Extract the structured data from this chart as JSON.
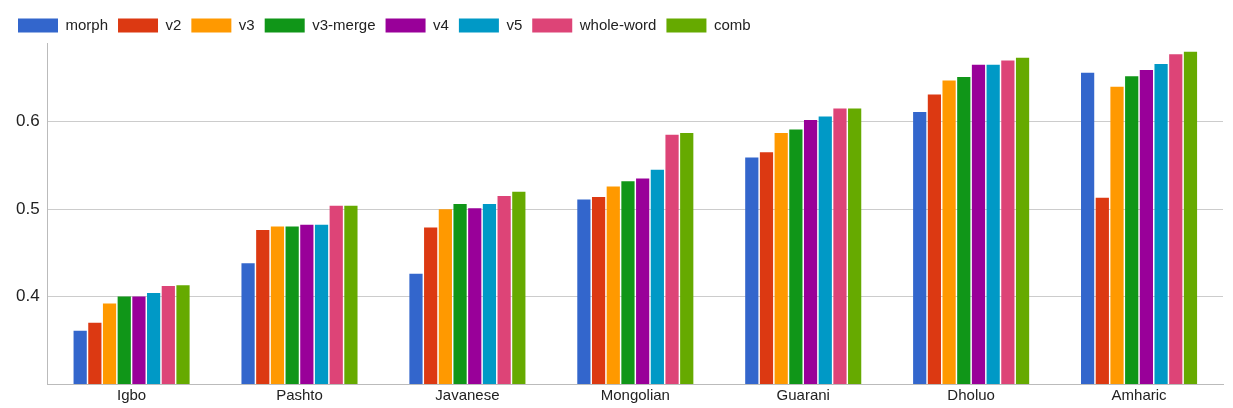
{
  "chart_data": {
    "type": "bar",
    "categories": [
      "Igbo",
      "Pashto",
      "Javanese",
      "Mongolian",
      "Guarani",
      "Dholuo",
      "Amharic"
    ],
    "series": [
      {
        "name": "morph",
        "color": "#3366cc",
        "values": [
          0.361,
          0.438,
          0.426,
          0.511,
          0.559,
          0.611,
          0.656
        ]
      },
      {
        "name": "v2",
        "color": "#dc3912",
        "values": [
          0.37,
          0.476,
          0.479,
          0.514,
          0.565,
          0.631,
          0.513
        ]
      },
      {
        "name": "v3",
        "color": "#ff9900",
        "values": [
          0.392,
          0.48,
          0.5,
          0.526,
          0.587,
          0.647,
          0.64
        ]
      },
      {
        "name": "v3-merge",
        "color": "#109618",
        "values": [
          0.4,
          0.48,
          0.506,
          0.532,
          0.591,
          0.651,
          0.652
        ]
      },
      {
        "name": "v4",
        "color": "#990099",
        "values": [
          0.4,
          0.482,
          0.501,
          0.535,
          0.602,
          0.665,
          0.659
        ]
      },
      {
        "name": "v5",
        "color": "#0099c6",
        "values": [
          0.404,
          0.482,
          0.506,
          0.545,
          0.606,
          0.665,
          0.666
        ]
      },
      {
        "name": "whole-word",
        "color": "#dd4477",
        "values": [
          0.412,
          0.504,
          0.515,
          0.585,
          0.615,
          0.67,
          0.677
        ]
      },
      {
        "name": "comb",
        "color": "#66aa00",
        "values": [
          0.413,
          0.504,
          0.52,
          0.587,
          0.615,
          0.673,
          0.68
        ]
      }
    ],
    "ylim": [
      0.3,
      0.69
    ],
    "yticks": [
      0.4,
      0.5,
      0.6
    ],
    "grid": "y",
    "legend": "top left"
  }
}
